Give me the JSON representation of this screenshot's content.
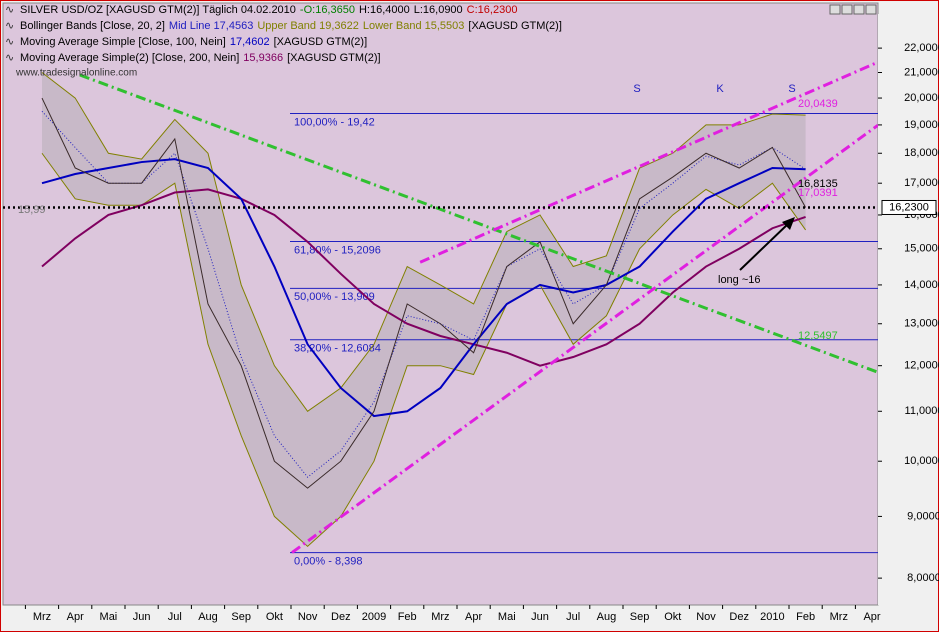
{
  "header": {
    "lines": [
      [
        {
          "text": "SILVER USD/OZ [XAGUSD GTM(2)]  Täglich 04.02.2010",
          "color": "#000000"
        },
        {
          "text": "-O:16,3650",
          "color": "#008000"
        },
        {
          "text": "H:16,4000",
          "color": "#000000"
        },
        {
          "text": "L:16,0900",
          "color": "#000000"
        },
        {
          "text": "C:16,2300",
          "color": "#c00000"
        }
      ],
      [
        {
          "text": "Bollinger Bands [Close, 20, 2]",
          "color": "#000000"
        },
        {
          "text": "Mid Line 17,4563",
          "color": "#2020c0"
        },
        {
          "text": "Upper Band 19,3622",
          "color": "#808000"
        },
        {
          "text": "Lower Band 15,5503",
          "color": "#808000"
        },
        {
          "text": "[XAGUSD GTM(2)]",
          "color": "#000000"
        }
      ],
      [
        {
          "text": "Moving Average Simple [Close, 100, Nein]",
          "color": "#000000"
        },
        {
          "text": "17,4602",
          "color": "#0000c0"
        },
        {
          "text": "[XAGUSD GTM(2)]",
          "color": "#000000"
        }
      ],
      [
        {
          "text": "Moving Average Simple(2) [Close, 200, Nein]",
          "color": "#000000"
        },
        {
          "text": "15,9366",
          "color": "#800060"
        },
        {
          "text": "[XAGUSD GTM(2)]",
          "color": "#000000"
        }
      ]
    ],
    "watermark": "www.tradesignalonline.com"
  },
  "chart_data": {
    "type": "line",
    "categories": [
      "Mrz",
      "Apr",
      "Mai",
      "Jun",
      "Jul",
      "Aug",
      "Sep",
      "Okt",
      "Nov",
      "Dez",
      "2009",
      "Feb",
      "Mrz",
      "Apr",
      "Mai",
      "Jun",
      "Jul",
      "Aug",
      "Sep",
      "Okt",
      "Nov",
      "Dez",
      "2010",
      "Feb",
      "Mrz",
      "Apr"
    ],
    "series": [
      {
        "name": "Upper Band",
        "color": "#808000",
        "width": 1,
        "dash": "",
        "values": [
          21,
          20,
          18,
          17.8,
          19.2,
          18,
          14,
          12,
          11,
          11.5,
          12.5,
          14.5,
          14,
          13.5,
          15.5,
          16,
          14.5,
          14.8,
          17.5,
          18,
          19,
          19,
          19.4,
          19.36,
          null,
          null
        ]
      },
      {
        "name": "Lower Band",
        "color": "#808000",
        "width": 1,
        "dash": "",
        "values": [
          18,
          16.5,
          16.3,
          16.3,
          17,
          12.5,
          10.5,
          9,
          8.5,
          9,
          10,
          12,
          12,
          11.8,
          13.5,
          14,
          12.5,
          13.2,
          15,
          16,
          16.8,
          16.2,
          17,
          15.55,
          null,
          null
        ]
      },
      {
        "name": "Mid Line",
        "color": "#2020c0",
        "width": 1,
        "dash": "1 2",
        "values": [
          19.5,
          18.2,
          17,
          17,
          18,
          15,
          12.2,
          10.5,
          9.7,
          10.2,
          11.2,
          13.2,
          13,
          12.6,
          14.5,
          15,
          13.5,
          14,
          16.2,
          17,
          17.9,
          17.6,
          18.2,
          17.46,
          null,
          null
        ]
      },
      {
        "name": "Moving Average Simple(2)",
        "color": "#800060",
        "width": 2,
        "dash": "",
        "values": [
          14.5,
          15.3,
          16,
          16.3,
          16.7,
          16.8,
          16.5,
          16,
          15.2,
          14.3,
          13.5,
          13,
          12.7,
          12.5,
          12.3,
          12,
          12.2,
          12.5,
          13,
          13.8,
          14.5,
          15,
          15.6,
          15.94,
          null,
          null
        ]
      },
      {
        "name": "Moving Average Simple",
        "color": "#0000c0",
        "width": 2,
        "dash": "",
        "values": [
          17,
          17.3,
          17.5,
          17.7,
          17.8,
          17.5,
          16.5,
          14.5,
          12.5,
          11.5,
          10.9,
          11,
          11.5,
          12.5,
          13.5,
          14,
          13.8,
          14,
          14.5,
          15.5,
          16.5,
          17,
          17.5,
          17.46,
          null,
          null
        ]
      },
      {
        "name": "SILVER USD/OZ",
        "color": "#3a2a2a",
        "width": 1,
        "dash": "",
        "values": [
          20,
          17.5,
          17,
          17,
          18.5,
          13.5,
          12,
          10,
          9.5,
          10,
          11,
          13.5,
          13,
          12.3,
          14.5,
          15.2,
          13,
          14,
          16.5,
          17.2,
          18,
          17.5,
          18.2,
          16.23,
          null,
          null
        ]
      }
    ],
    "levels": [
      {
        "label": "100,00% - 19,42",
        "value": 19.42
      },
      {
        "label": "61,80% - 15,2096",
        "value": 15.2096
      },
      {
        "label": "50,00% - 13,909",
        "value": 13.909
      },
      {
        "label": "38,20% - 12,6084",
        "value": 12.6084
      },
      {
        "label": "0,00% - 8,398",
        "value": 8.398
      }
    ],
    "level_color": "#2020c0",
    "trendlines": [
      {
        "color": "#30c030",
        "x": [
          1.14,
          25.18
        ],
        "y": [
          20.9,
          11.85
        ]
      },
      {
        "color": "#e020e0",
        "x": [
          7.53,
          25.18
        ],
        "y": [
          8.4,
          18.99
        ]
      },
      {
        "color": "#e020e0",
        "x": [
          11.39,
          25.18
        ],
        "y": [
          14.62,
          21.42
        ]
      }
    ],
    "current": {
      "value": 16.23,
      "label": "16,2300"
    },
    "labels": {
      "s1": "S",
      "k": "K",
      "s2": "S",
      "long": "long ~16",
      "p1": "20,0439",
      "p2": "16,8135",
      "p3": "17,0391",
      "p4": "12,5497",
      "p5": "15,99"
    },
    "ylim": [
      7.6,
      23.48
    ],
    "log_scale": true,
    "yticks": [
      {
        "value": 8,
        "label": "8,0000"
      },
      {
        "value": 9,
        "label": "9,0000"
      },
      {
        "value": 10,
        "label": "10,0000"
      },
      {
        "value": 11,
        "label": "11,0000"
      },
      {
        "value": 12,
        "label": "12,0000"
      },
      {
        "value": 13,
        "label": "13,0000"
      },
      {
        "value": 14,
        "label": "14,0000"
      },
      {
        "value": 15,
        "label": "15,0000"
      },
      {
        "value": 16,
        "label": "16,0000"
      },
      {
        "value": 17,
        "label": "17,0000"
      },
      {
        "value": 18,
        "label": "18,0000"
      },
      {
        "value": 19,
        "label": "19,0000"
      },
      {
        "value": 20,
        "label": "20,0000"
      },
      {
        "value": 21,
        "label": "21,0000"
      },
      {
        "value": 22,
        "label": "22,0000"
      }
    ]
  }
}
